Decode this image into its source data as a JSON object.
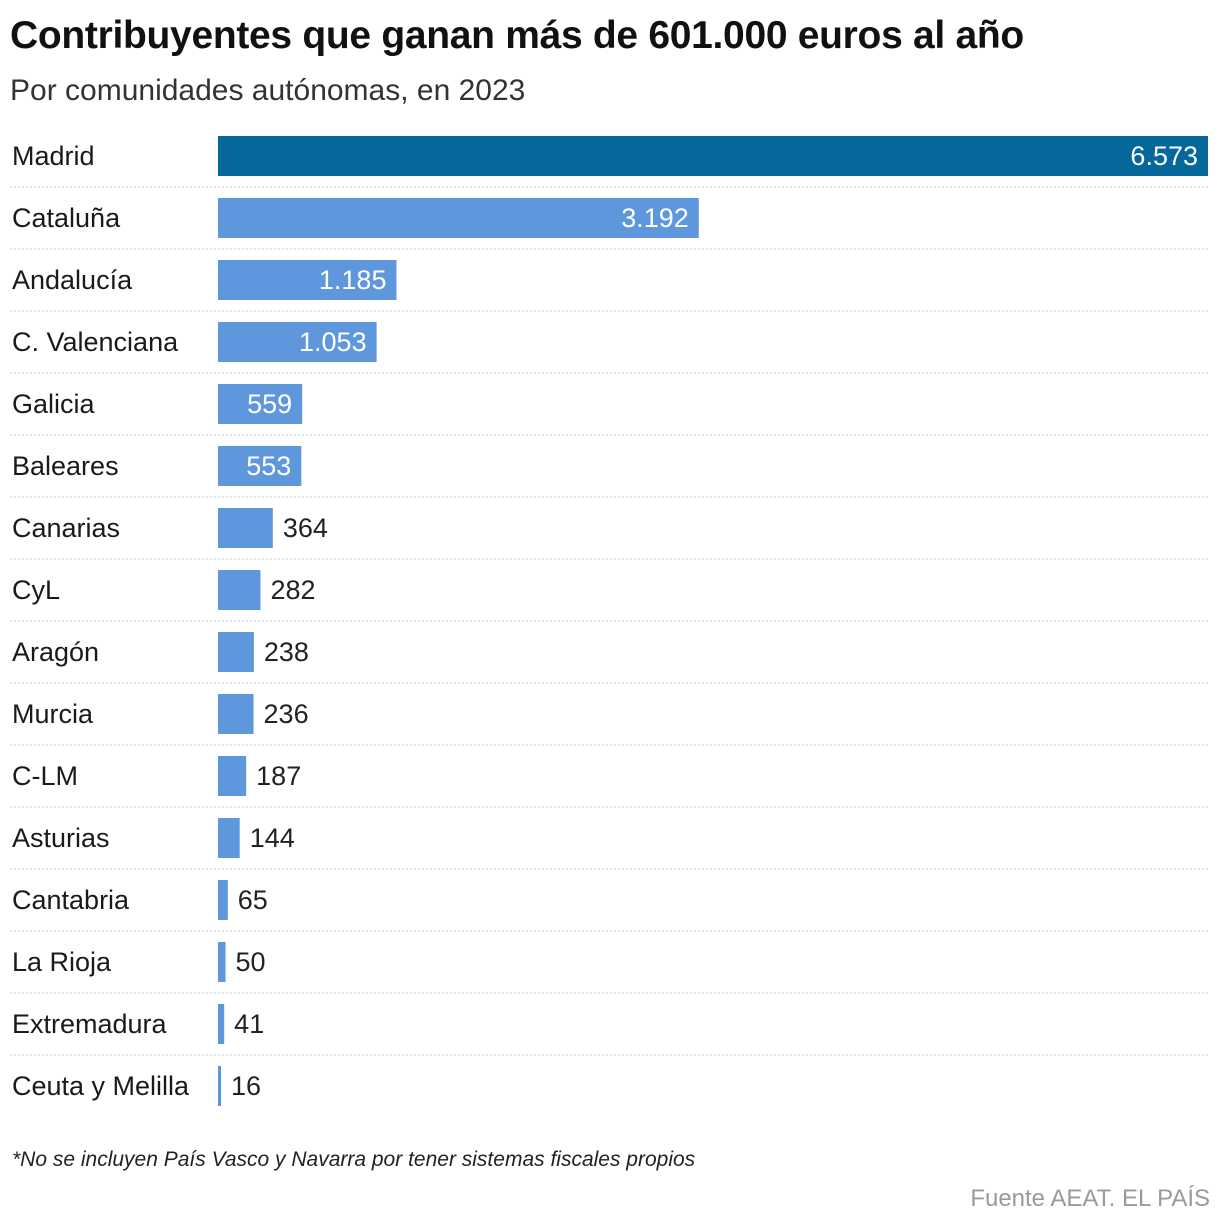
{
  "chart_data": {
    "type": "bar",
    "orientation": "horizontal",
    "title": "Contribuyentes que ganan más de 601.000 euros al año",
    "subtitle": "Por comunidades autónomas, en 2023",
    "categories": [
      "Madrid",
      "Cataluña",
      "Andalucía",
      "C. Valenciana",
      "Galicia",
      "Baleares",
      "Canarias",
      "CyL",
      "Aragón",
      "Murcia",
      "C-LM",
      "Asturias",
      "Cantabria",
      "La Rioja",
      "Extremadura",
      "Ceuta y Melilla"
    ],
    "values": [
      6573,
      3192,
      1185,
      1053,
      559,
      553,
      364,
      282,
      238,
      236,
      187,
      144,
      65,
      50,
      41,
      16
    ],
    "value_labels": [
      "6.573",
      "3.192",
      "1.185",
      "1.053",
      "559",
      "553",
      "364",
      "282",
      "238",
      "236",
      "187",
      "144",
      "65",
      "50",
      "41",
      "16"
    ],
    "xlim": [
      0,
      6573
    ],
    "highlight_category": "Madrid",
    "colors": {
      "highlight": "#06679a",
      "default": "#5e97dc",
      "label_inside": "#ffffff",
      "label_outside": "#222222",
      "grid": "#c8c8c8"
    },
    "xlabel": "",
    "ylabel": "",
    "footnote": "*No se incluyen País Vasco y Navarra por tener sistemas fiscales propios",
    "source": "Fuente AEAT. EL PAÍS"
  }
}
